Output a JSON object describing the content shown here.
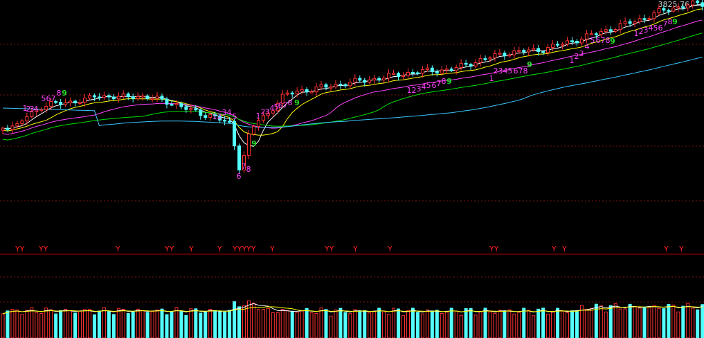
{
  "chart_data": {
    "type": "candlestick",
    "price_panel": {
      "max_price": 3825.76,
      "max_price_label": "3825.76",
      "grid": true,
      "colors": {
        "up": "#ff3232",
        "down": "#54ffff",
        "ma5": "#ffffff",
        "ma10": "#ffff00",
        "ma20": "#ff44ff",
        "ma30": "#00e000",
        "ma60": "#3ac7ff",
        "seq_count": "#ff44ff",
        "seq_complete": "#22dd22"
      }
    },
    "td_sequences": [
      {
        "labels": [
          "1",
          "2",
          "3",
          "4",
          "5",
          "6",
          "7",
          "8",
          "9"
        ],
        "complete": true
      },
      {
        "labels": [
          "1",
          "2",
          "3",
          "4",
          "5",
          "6",
          "7",
          "8",
          "9"
        ],
        "complete": true
      },
      {
        "labels": [
          "1",
          "2",
          "3",
          "4",
          "5",
          "6",
          "7",
          "8",
          "9"
        ],
        "complete": true
      },
      {
        "labels": [
          "1",
          "2",
          "3",
          "4",
          "5",
          "6",
          "7",
          "8",
          "9"
        ],
        "complete": true
      },
      {
        "labels": [
          "1",
          "2",
          "3",
          "4",
          "5",
          "6",
          "7",
          "8",
          "9"
        ],
        "complete": true
      },
      {
        "labels": [
          "1",
          "2",
          "3",
          "4",
          "5",
          "6",
          "7",
          "8",
          "9"
        ],
        "complete": true
      },
      {
        "labels": [
          "1",
          "2",
          "3",
          "4",
          "5",
          "6",
          "7",
          "8",
          "9"
        ],
        "complete": true
      }
    ],
    "signal_marker": "Y",
    "signal_strip": [
      "YY",
      "YY",
      "Y",
      "YY",
      "Y",
      "Y",
      "YYYYY",
      "Y",
      "YY",
      "Y",
      "Y",
      "YY",
      "Y",
      "Y",
      "Y",
      "Y"
    ],
    "volume_panel": {
      "colors": {
        "up": "#ff3232",
        "down": "#54ffff",
        "ma": "#ffffff",
        "ma2": "#ffff00"
      }
    }
  }
}
